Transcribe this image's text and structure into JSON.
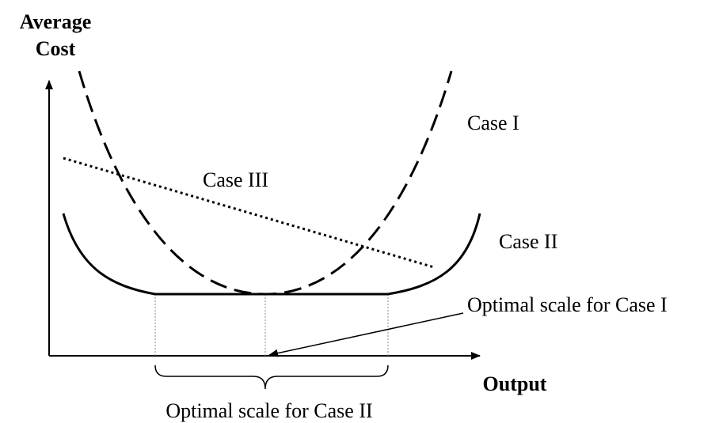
{
  "axes": {
    "y_label_line1": "Average",
    "y_label_line2": "Cost",
    "x_label": "Output"
  },
  "curves": {
    "case1": "Case I",
    "case2": "Case II",
    "case3": "Case III"
  },
  "annotations": {
    "optimal1": "Optimal scale for Case I",
    "optimal2": "Optimal scale for Case II"
  }
}
